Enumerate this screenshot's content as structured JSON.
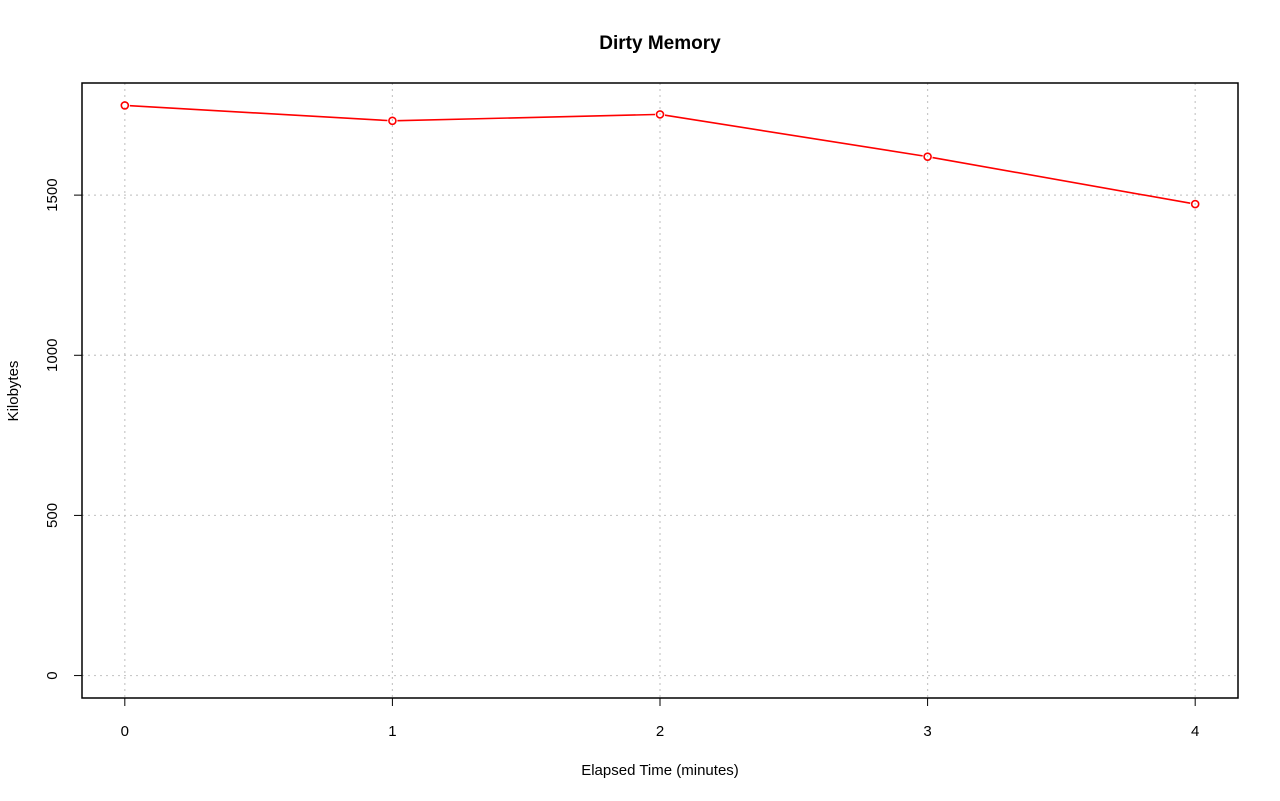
{
  "chart_data": {
    "type": "line",
    "title": "Dirty Memory",
    "xlabel": "Elapsed Time (minutes)",
    "ylabel": "Kilobytes",
    "x": [
      0,
      1,
      2,
      3,
      4
    ],
    "series": [
      {
        "values": [
          1780,
          1732,
          1752,
          1620,
          1472
        ],
        "color": "#ff0000",
        "marker": "open-circle"
      }
    ],
    "xlim": [
      -0.16,
      4.16
    ],
    "ylim": [
      -70,
      1850
    ],
    "x_ticks": [
      0,
      1,
      2,
      3,
      4
    ],
    "y_ticks": [
      0,
      500,
      1000,
      1500
    ],
    "grid": true,
    "grid_style": "dotted",
    "grid_color": "#c8c8c8"
  }
}
